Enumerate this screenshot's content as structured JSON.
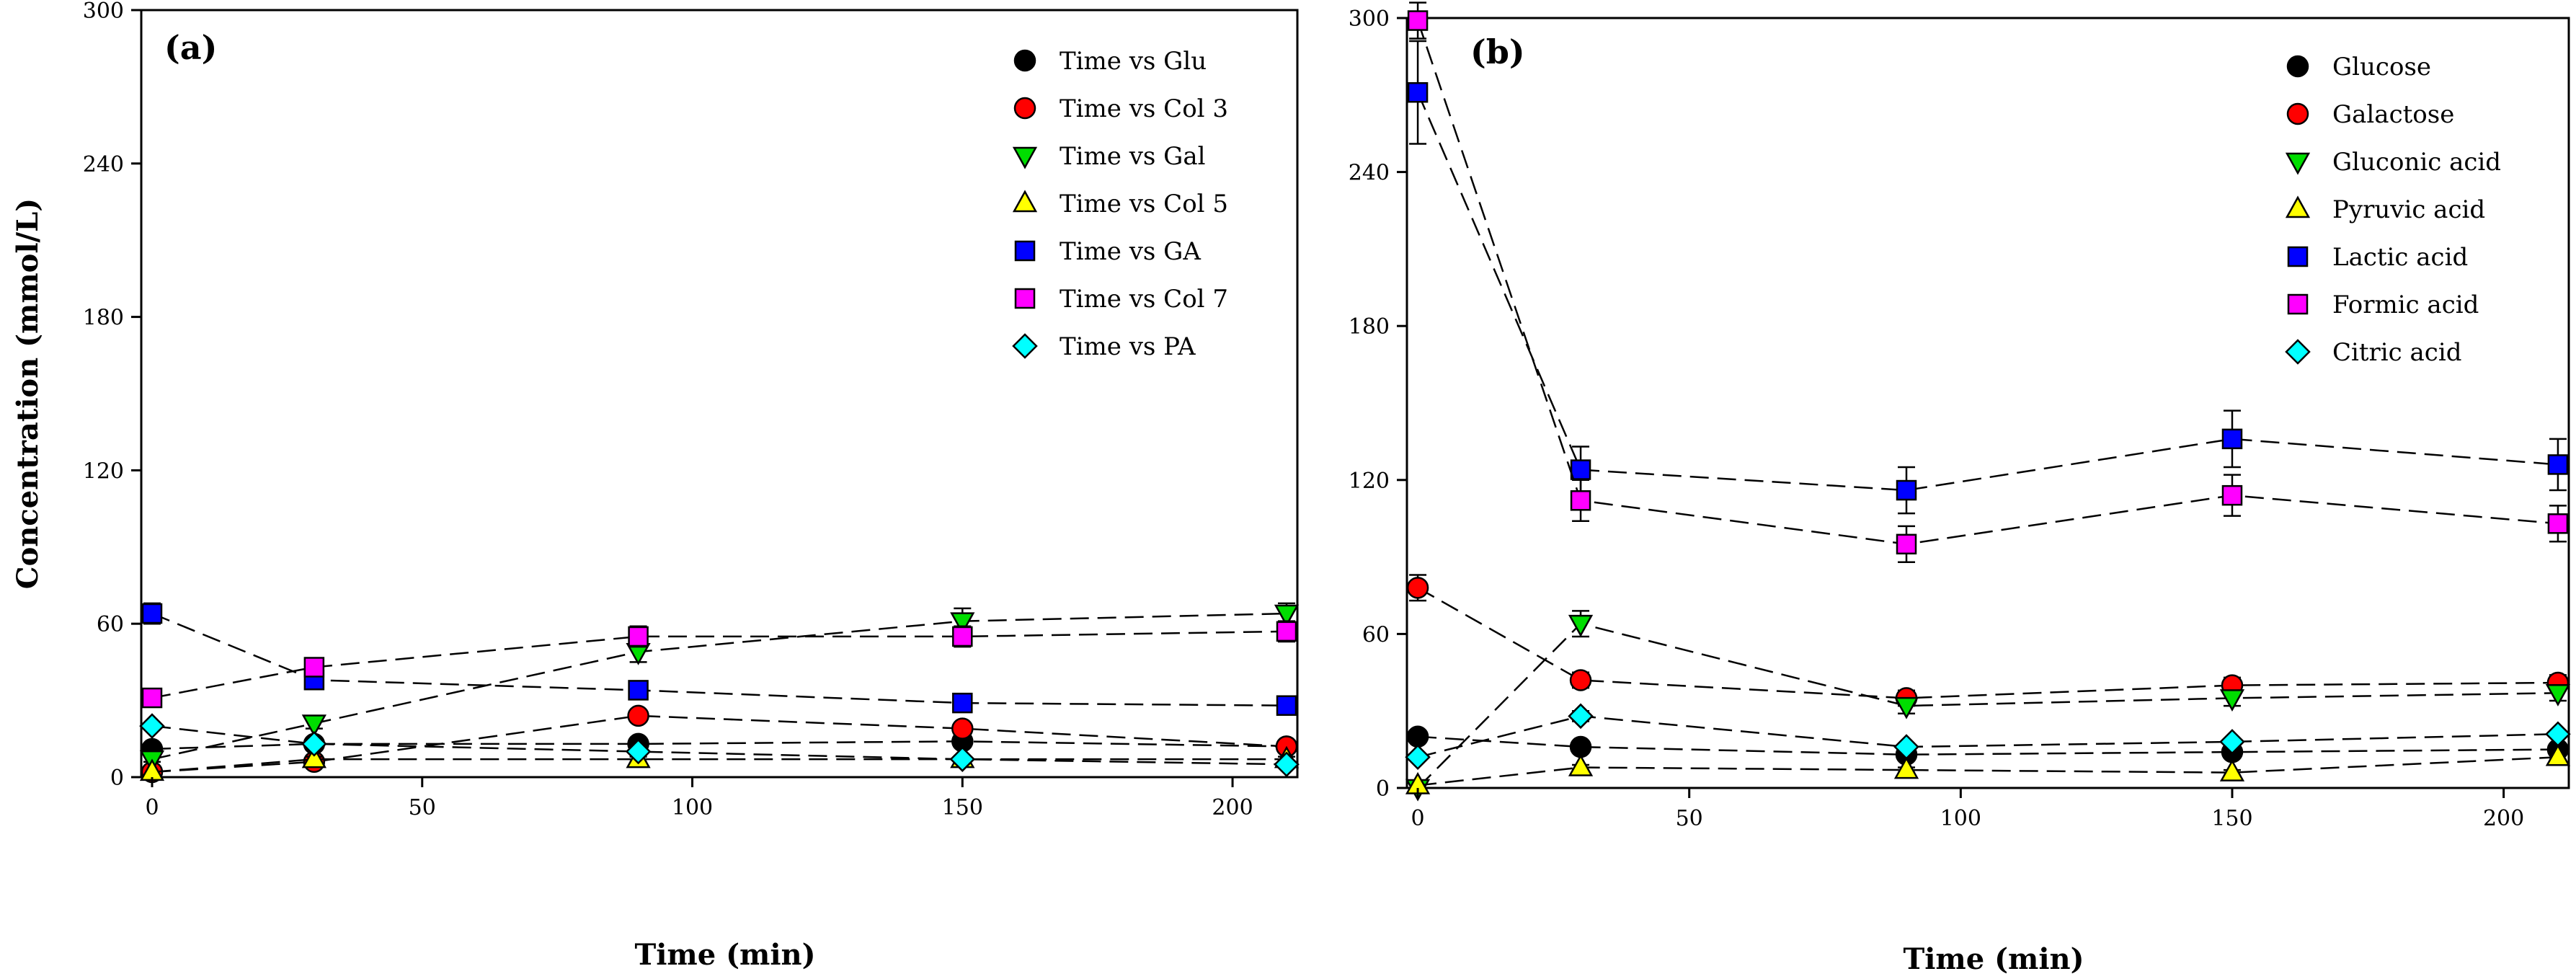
{
  "chart_data": [
    {
      "type": "scatter",
      "panel_label": "(a)",
      "xlabel": "Time (min)",
      "ylabel": "Concentration (mmol/L)",
      "xlim": [
        -2,
        212
      ],
      "ylim": [
        0,
        300
      ],
      "xticks": [
        "0",
        "50",
        "100",
        "150",
        "200"
      ],
      "yticks": [
        "0",
        "60",
        "120",
        "180",
        "240",
        "300"
      ],
      "x": [
        0,
        30,
        90,
        150,
        210
      ],
      "series": [
        {
          "name": "Time vs Glu",
          "marker": "circle",
          "color": "#000000",
          "values": [
            11,
            13,
            13,
            14,
            12
          ],
          "err": [
            1,
            1,
            1,
            1,
            1
          ]
        },
        {
          "name": "Time vs Col 3",
          "marker": "circle",
          "color": "#ff0000",
          "values": [
            2,
            6,
            24,
            19,
            12
          ],
          "err": [
            1,
            1,
            2,
            2,
            1
          ]
        },
        {
          "name": "Time vs Gal",
          "marker": "tri-down",
          "color": "#00dd00",
          "values": [
            7,
            21,
            49,
            61,
            64
          ],
          "err": [
            1,
            2,
            4,
            5,
            4
          ]
        },
        {
          "name": "Time vs Col 5",
          "marker": "tri-up",
          "color": "#ffff00",
          "values": [
            2,
            7,
            7,
            7,
            7
          ],
          "err": [
            0,
            1,
            1,
            1,
            1
          ]
        },
        {
          "name": "Time vs GA",
          "marker": "square",
          "color": "#0000ff",
          "values": [
            64,
            38,
            34,
            29,
            28
          ],
          "err": [
            4,
            2,
            2,
            2,
            2
          ]
        },
        {
          "name": "Time vs Col 7",
          "marker": "square",
          "color": "#ff00ff",
          "values": [
            31,
            43,
            55,
            55,
            57
          ],
          "err": [
            2,
            3,
            4,
            4,
            4
          ]
        },
        {
          "name": "Time vs PA",
          "marker": "diamond",
          "color": "#00ffff",
          "values": [
            20,
            13,
            10,
            7,
            5
          ],
          "err": [
            1,
            1,
            1,
            1,
            1
          ]
        }
      ]
    },
    {
      "type": "scatter",
      "panel_label": "(b)",
      "xlabel": "Time (min)",
      "ylabel": "",
      "xlim": [
        -2,
        212
      ],
      "ylim": [
        0,
        300
      ],
      "xticks": [
        "0",
        "50",
        "100",
        "150",
        "200"
      ],
      "yticks": [
        "0",
        "60",
        "120",
        "180",
        "240",
        "300"
      ],
      "x": [
        0,
        30,
        90,
        150,
        210
      ],
      "series": [
        {
          "name": "Glucose",
          "marker": "circle",
          "color": "#000000",
          "values": [
            20,
            16,
            13,
            14,
            15
          ],
          "err": [
            1,
            1,
            1,
            1,
            1
          ]
        },
        {
          "name": "Galactose",
          "marker": "circle",
          "color": "#ff0000",
          "values": [
            78,
            42,
            35,
            40,
            41
          ],
          "err": [
            5,
            3,
            3,
            3,
            3
          ]
        },
        {
          "name": "Gluconic acid",
          "marker": "tri-down",
          "color": "#00dd00",
          "values": [
            0,
            64,
            32,
            35,
            37
          ],
          "err": [
            0,
            5,
            3,
            3,
            3
          ]
        },
        {
          "name": "Pyruvic acid",
          "marker": "tri-up",
          "color": "#ffff00",
          "values": [
            1,
            8,
            7,
            6,
            12
          ],
          "err": [
            0,
            1,
            1,
            1,
            1
          ]
        },
        {
          "name": "Lactic acid",
          "marker": "square",
          "color": "#0000ff",
          "values": [
            271,
            124,
            116,
            136,
            126
          ],
          "err": [
            20,
            9,
            9,
            11,
            10
          ]
        },
        {
          "name": "Formic acid",
          "marker": "square",
          "color": "#ff00ff",
          "values": [
            299,
            112,
            95,
            114,
            103
          ],
          "err": [
            7,
            8,
            7,
            8,
            7
          ]
        },
        {
          "name": "Citric acid",
          "marker": "diamond",
          "color": "#00ffff",
          "values": [
            12,
            28,
            16,
            18,
            21
          ],
          "err": [
            1,
            2,
            1,
            1,
            1
          ]
        }
      ]
    }
  ]
}
